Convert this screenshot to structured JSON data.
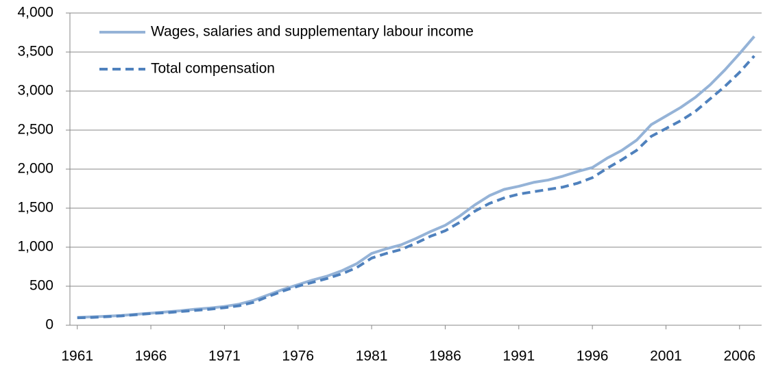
{
  "chart_data": {
    "type": "line",
    "x": [
      1961,
      1962,
      1963,
      1964,
      1965,
      1966,
      1967,
      1968,
      1969,
      1970,
      1971,
      1972,
      1973,
      1974,
      1975,
      1976,
      1977,
      1978,
      1979,
      1980,
      1981,
      1982,
      1983,
      1984,
      1985,
      1986,
      1987,
      1988,
      1989,
      1990,
      1991,
      1992,
      1993,
      1994,
      1995,
      1996,
      1997,
      1998,
      1999,
      2000,
      2001,
      2002,
      2003,
      2004,
      2005,
      2006,
      2007
    ],
    "series": [
      {
        "name": "Wages, salaries and supplementary labour income",
        "color": "#95b3d7",
        "dash": false,
        "values": [
          100,
          108,
          115,
          125,
          140,
          155,
          170,
          185,
          205,
          220,
          240,
          270,
          320,
          390,
          460,
          520,
          580,
          630,
          700,
          790,
          920,
          980,
          1030,
          1110,
          1200,
          1280,
          1400,
          1540,
          1660,
          1740,
          1780,
          1830,
          1860,
          1910,
          1970,
          2020,
          2140,
          2240,
          2370,
          2570,
          2680,
          2790,
          2920,
          3080,
          3270,
          3480,
          3700
        ]
      },
      {
        "name": "Total compensation",
        "color": "#4f81bd",
        "dash": true,
        "values": [
          95,
          100,
          110,
          120,
          135,
          150,
          160,
          175,
          190,
          205,
          225,
          250,
          295,
          370,
          440,
          500,
          550,
          600,
          660,
          740,
          860,
          920,
          970,
          1050,
          1140,
          1210,
          1320,
          1460,
          1560,
          1630,
          1680,
          1710,
          1740,
          1770,
          1820,
          1890,
          2010,
          2120,
          2240,
          2420,
          2520,
          2620,
          2740,
          2900,
          3060,
          3240,
          3450
        ]
      }
    ],
    "xlim": [
      1960.5,
      2007.5
    ],
    "xticks": [
      1961,
      1966,
      1971,
      1976,
      1981,
      1986,
      1991,
      1996,
      2001,
      2006
    ],
    "ylim": [
      0,
      4000
    ],
    "yticks": [
      0,
      500,
      {
        "value": 1000,
        "label": "1,000"
      },
      {
        "value": 1500,
        "label": "1,500"
      },
      {
        "value": 2000,
        "label": "2,000"
      },
      {
        "value": 2500,
        "label": "2,500"
      },
      {
        "value": 3000,
        "label": "3,000"
      },
      {
        "value": 3500,
        "label": "3,500"
      },
      {
        "value": 4000,
        "label": "4,000"
      }
    ],
    "grid": true,
    "legend": "top-left"
  }
}
